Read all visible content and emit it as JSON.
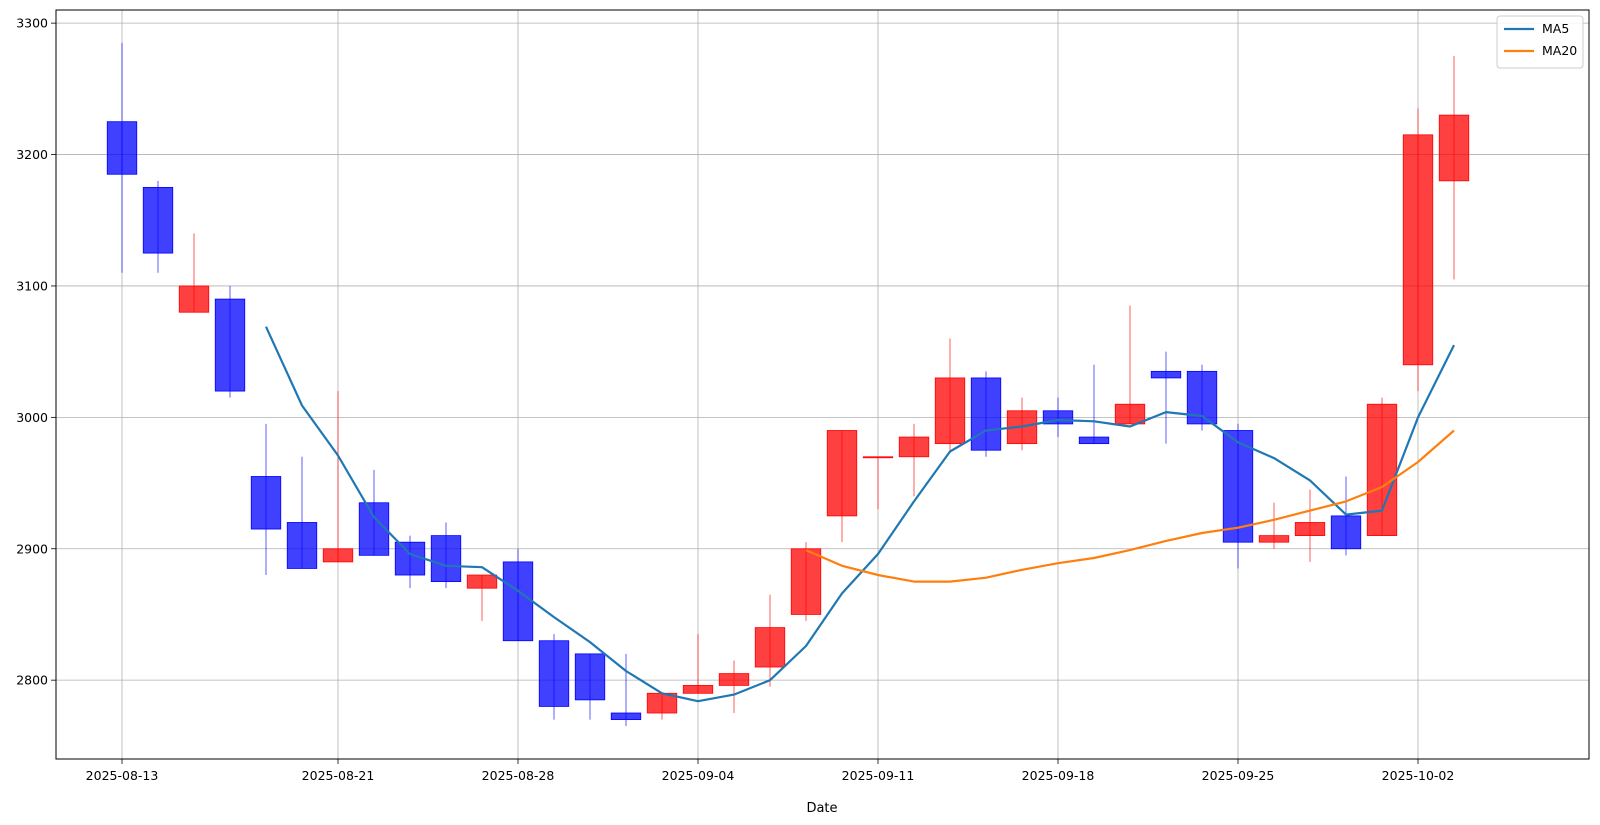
{
  "chart_data": {
    "type": "candlestick",
    "xlabel": "Date",
    "ylabel": "",
    "ylim": [
      2740,
      3310
    ],
    "grid": true,
    "legend_position": "top-right",
    "x_ticks": [
      "2025-08-13",
      "2025-08-21",
      "2025-08-28",
      "2025-09-04",
      "2025-09-11",
      "2025-09-18",
      "2025-09-25",
      "2025-10-02"
    ],
    "y_ticks": [
      2800,
      2900,
      3000,
      3100,
      3200,
      3300
    ],
    "colors": {
      "up": "#ff0000",
      "down": "#0000ff",
      "ma5": "#1f77b4",
      "ma20": "#ff7f0e"
    },
    "candles": [
      {
        "date": "2025-08-13",
        "open": 3225,
        "high": 3285,
        "low": 3110,
        "close": 3185
      },
      {
        "date": "2025-08-14",
        "open": 3175,
        "high": 3180,
        "low": 3110,
        "close": 3125
      },
      {
        "date": "2025-08-15",
        "open": 3080,
        "high": 3140,
        "low": 3080,
        "close": 3100
      },
      {
        "date": "2025-08-18",
        "open": 3090,
        "high": 3100,
        "low": 3015,
        "close": 3020
      },
      {
        "date": "2025-08-19",
        "open": 2955,
        "high": 2995,
        "low": 2880,
        "close": 2915
      },
      {
        "date": "2025-08-20",
        "open": 2920,
        "high": 2970,
        "low": 2885,
        "close": 2885
      },
      {
        "date": "2025-08-21",
        "open": 2890,
        "high": 3020,
        "low": 2890,
        "close": 2900
      },
      {
        "date": "2025-08-22",
        "open": 2935,
        "high": 2960,
        "low": 2895,
        "close": 2895
      },
      {
        "date": "2025-08-25",
        "open": 2905,
        "high": 2910,
        "low": 2870,
        "close": 2880
      },
      {
        "date": "2025-08-26",
        "open": 2910,
        "high": 2920,
        "low": 2870,
        "close": 2875
      },
      {
        "date": "2025-08-27",
        "open": 2870,
        "high": 2880,
        "low": 2845,
        "close": 2880
      },
      {
        "date": "2025-08-28",
        "open": 2890,
        "high": 2900,
        "low": 2830,
        "close": 2830
      },
      {
        "date": "2025-08-29",
        "open": 2830,
        "high": 2835,
        "low": 2770,
        "close": 2780
      },
      {
        "date": "2025-09-01",
        "open": 2820,
        "high": 2820,
        "low": 2770,
        "close": 2785
      },
      {
        "date": "2025-09-02",
        "open": 2775,
        "high": 2820,
        "low": 2765,
        "close": 2770
      },
      {
        "date": "2025-09-03",
        "open": 2775,
        "high": 2790,
        "low": 2770,
        "close": 2790
      },
      {
        "date": "2025-09-04",
        "open": 2790,
        "high": 2835,
        "low": 2790,
        "close": 2796
      },
      {
        "date": "2025-09-05",
        "open": 2796,
        "high": 2815,
        "low": 2775,
        "close": 2805
      },
      {
        "date": "2025-09-08",
        "open": 2810,
        "high": 2865,
        "low": 2795,
        "close": 2840
      },
      {
        "date": "2025-09-09",
        "open": 2850,
        "high": 2905,
        "low": 2845,
        "close": 2900
      },
      {
        "date": "2025-09-10",
        "open": 2925,
        "high": 2990,
        "low": 2905,
        "close": 2990
      },
      {
        "date": "2025-09-11",
        "open": 2970,
        "high": 2970,
        "low": 2930,
        "close": 2970
      },
      {
        "date": "2025-09-12",
        "open": 2970,
        "high": 2995,
        "low": 2940,
        "close": 2985
      },
      {
        "date": "2025-09-15",
        "open": 2980,
        "high": 3060,
        "low": 2975,
        "close": 3030
      },
      {
        "date": "2025-09-16",
        "open": 3030,
        "high": 3035,
        "low": 2970,
        "close": 2975
      },
      {
        "date": "2025-09-17",
        "open": 2980,
        "high": 3015,
        "low": 2975,
        "close": 3005
      },
      {
        "date": "2025-09-18",
        "open": 3005,
        "high": 3015,
        "low": 2985,
        "close": 2995
      },
      {
        "date": "2025-09-19",
        "open": 2985,
        "high": 3040,
        "low": 2980,
        "close": 2980
      },
      {
        "date": "2025-09-22",
        "open": 2995,
        "high": 3085,
        "low": 2995,
        "close": 3010
      },
      {
        "date": "2025-09-23",
        "open": 3035,
        "high": 3050,
        "low": 2980,
        "close": 3030
      },
      {
        "date": "2025-09-24",
        "open": 3035,
        "high": 3040,
        "low": 2990,
        "close": 2995
      },
      {
        "date": "2025-09-25",
        "open": 2990,
        "high": 2995,
        "low": 2885,
        "close": 2905
      },
      {
        "date": "2025-09-26",
        "open": 2905,
        "high": 2935,
        "low": 2900,
        "close": 2910
      },
      {
        "date": "2025-09-29",
        "open": 2910,
        "high": 2945,
        "low": 2890,
        "close": 2920
      },
      {
        "date": "2025-09-30",
        "open": 2925,
        "high": 2955,
        "low": 2895,
        "close": 2900
      },
      {
        "date": "2025-10-01",
        "open": 2910,
        "high": 3015,
        "low": 2910,
        "close": 3010
      },
      {
        "date": "2025-10-02",
        "open": 3040,
        "high": 3235,
        "low": 3020,
        "close": 3215
      },
      {
        "date": "2025-10-03",
        "open": 3180,
        "high": 3275,
        "low": 3105,
        "close": 3230
      }
    ],
    "series": [
      {
        "name": "MA5",
        "start_index": 4,
        "values": [
          3069,
          3009,
          2971,
          2924,
          2896,
          2887,
          2886,
          2868,
          2848,
          2829,
          2807,
          2790,
          2784,
          2789,
          2800,
          2826,
          2866,
          2896,
          2936,
          2974,
          2990,
          2993,
          2998,
          2997,
          2993,
          3004,
          3001,
          2981,
          2969,
          2952,
          2926,
          2929,
          3000,
          3055
        ]
      },
      {
        "name": "MA20",
        "start_index": 19,
        "values": [
          2899,
          2887,
          2880,
          2875,
          2875,
          2878,
          2884,
          2889,
          2893,
          2899,
          2906,
          2912,
          2916,
          2922,
          2929,
          2936,
          2947,
          2966,
          2990
        ]
      }
    ]
  }
}
